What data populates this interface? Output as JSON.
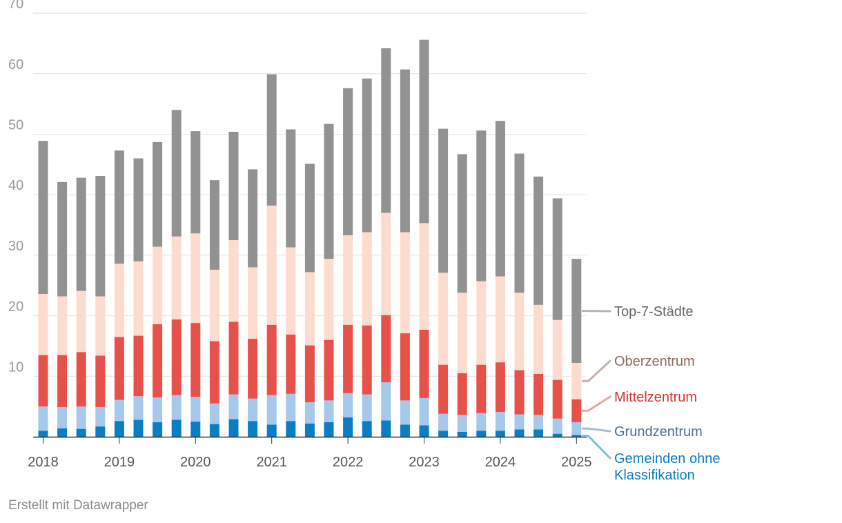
{
  "chart_data": {
    "type": "bar",
    "stacked": true,
    "title": "",
    "xlabel": "",
    "ylabel": "",
    "ylim": [
      0,
      70
    ],
    "yticks": [
      10,
      20,
      30,
      40,
      50,
      60,
      70
    ],
    "x_axis_labels": [
      "2018",
      "2019",
      "2020",
      "2021",
      "2022",
      "2023",
      "2024",
      "2025"
    ],
    "categories": [
      "2018 Q1",
      "2018 Q2",
      "2018 Q3",
      "2018 Q4",
      "2019 Q1",
      "2019 Q2",
      "2019 Q3",
      "2019 Q4",
      "2020 Q1",
      "2020 Q2",
      "2020 Q3",
      "2020 Q4",
      "2021 Q1",
      "2021 Q2",
      "2021 Q3",
      "2021 Q4",
      "2022 Q1",
      "2022 Q2",
      "2022 Q3",
      "2022 Q4",
      "2023 Q1",
      "2023 Q2",
      "2023 Q3",
      "2023 Q4",
      "2024 Q1",
      "2024 Q2",
      "2024 Q3",
      "2024 Q4",
      "2025 Q1"
    ],
    "grid": true,
    "legend_placement": "right (direct labels)",
    "series": [
      {
        "name": "Gemeinden ohne Klassifikation",
        "color": "#0a7ec2",
        "values": [
          1.0,
          1.4,
          1.3,
          1.7,
          2.6,
          2.8,
          2.4,
          2.8,
          2.5,
          2.1,
          2.9,
          2.6,
          2.0,
          2.6,
          2.2,
          2.4,
          3.2,
          2.6,
          2.7,
          2.0,
          1.9,
          1.0,
          0.8,
          1.0,
          1.0,
          1.2,
          1.2,
          0.5,
          0.3
        ]
      },
      {
        "name": "Grundzentrum",
        "color": "#a6c8ea",
        "values": [
          4.0,
          3.5,
          3.7,
          3.2,
          3.5,
          3.9,
          4.1,
          4.1,
          4.1,
          3.4,
          4.1,
          3.7,
          4.9,
          4.5,
          3.5,
          3.6,
          4.0,
          4.4,
          6.3,
          4.0,
          4.5,
          2.8,
          2.8,
          2.9,
          3.1,
          2.5,
          2.4,
          2.5,
          2.1
        ]
      },
      {
        "name": "Mittelzentrum",
        "color": "#e8504a",
        "values": [
          8.5,
          8.6,
          9.0,
          8.5,
          10.4,
          10.0,
          12.1,
          12.5,
          12.2,
          10.3,
          12.0,
          9.9,
          11.6,
          9.8,
          9.4,
          10.0,
          11.3,
          11.4,
          11.1,
          11.1,
          11.3,
          8.1,
          6.9,
          8.0,
          8.2,
          7.3,
          6.8,
          6.4,
          3.8
        ]
      },
      {
        "name": "Oberzentrum",
        "color": "#fddcd0",
        "values": [
          10.1,
          9.7,
          10.1,
          9.8,
          12.1,
          12.3,
          12.8,
          13.7,
          14.8,
          11.8,
          13.5,
          11.8,
          19.7,
          14.4,
          12.1,
          13.4,
          14.8,
          15.4,
          16.9,
          16.7,
          17.6,
          15.2,
          13.3,
          13.8,
          14.2,
          12.8,
          11.4,
          9.9,
          6.0
        ]
      },
      {
        "name": "Top-7-Städte",
        "color": "#929292",
        "values": [
          25.3,
          18.9,
          18.7,
          19.9,
          18.7,
          17.0,
          17.3,
          20.9,
          16.9,
          14.8,
          17.9,
          16.2,
          21.7,
          19.5,
          17.9,
          22.3,
          24.3,
          25.4,
          27.2,
          26.9,
          30.3,
          23.8,
          22.9,
          24.9,
          25.7,
          23.0,
          21.2,
          20.1,
          17.2
        ]
      }
    ]
  },
  "footer": {
    "credit": "Erstellt mit Datawrapper"
  }
}
